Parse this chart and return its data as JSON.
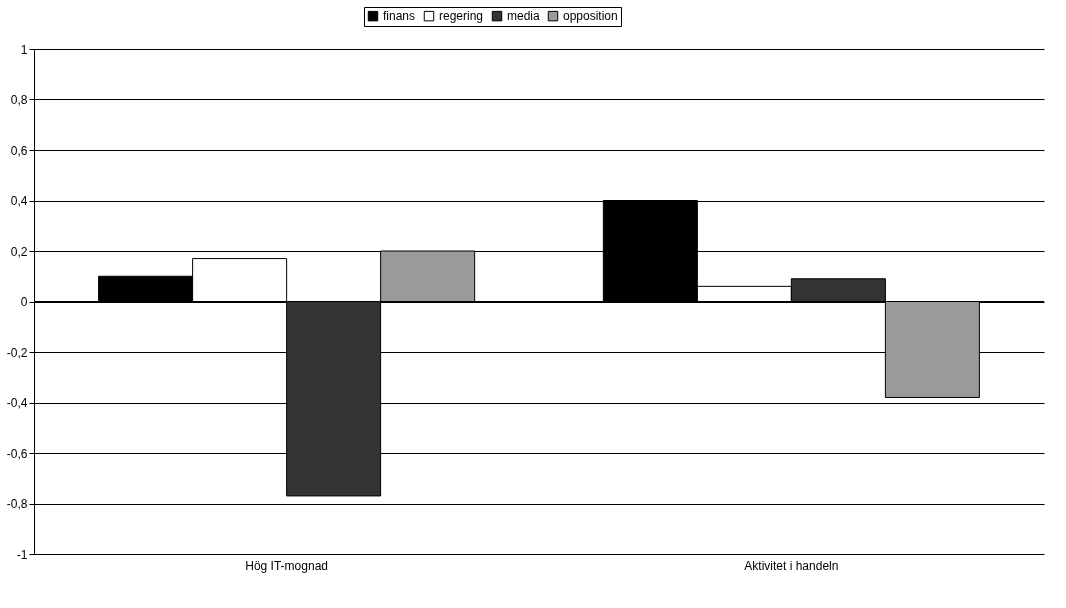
{
  "chart_data": {
    "type": "bar",
    "categories": [
      "Hög IT-mognad",
      "Aktivitet i handeln"
    ],
    "series": [
      {
        "name": "finans",
        "color": "#000000",
        "values": [
          0.1,
          0.4
        ]
      },
      {
        "name": "regering",
        "color": "#ffffff",
        "values": [
          0.17,
          0.06
        ]
      },
      {
        "name": "media",
        "color": "#333333",
        "values": [
          -0.77,
          0.09
        ]
      },
      {
        "name": "opposition",
        "color": "#9a9a9a",
        "values": [
          0.2,
          -0.38
        ]
      }
    ],
    "ylim": [
      -1,
      1
    ],
    "yticks": [
      {
        "value": -1,
        "label": "-1"
      },
      {
        "value": -0.8,
        "label": "-0,8"
      },
      {
        "value": -0.6,
        "label": "-0,6"
      },
      {
        "value": -0.4,
        "label": "-0,4"
      },
      {
        "value": -0.2,
        "label": "-0,2"
      },
      0,
      {
        "value": 0.2,
        "label": "0,2"
      },
      {
        "value": 0.4,
        "label": "0,4"
      },
      {
        "value": 0.6,
        "label": "0,6"
      },
      {
        "value": 0.8,
        "label": "0,8"
      },
      1
    ],
    "grid": "y",
    "legend": "top"
  }
}
